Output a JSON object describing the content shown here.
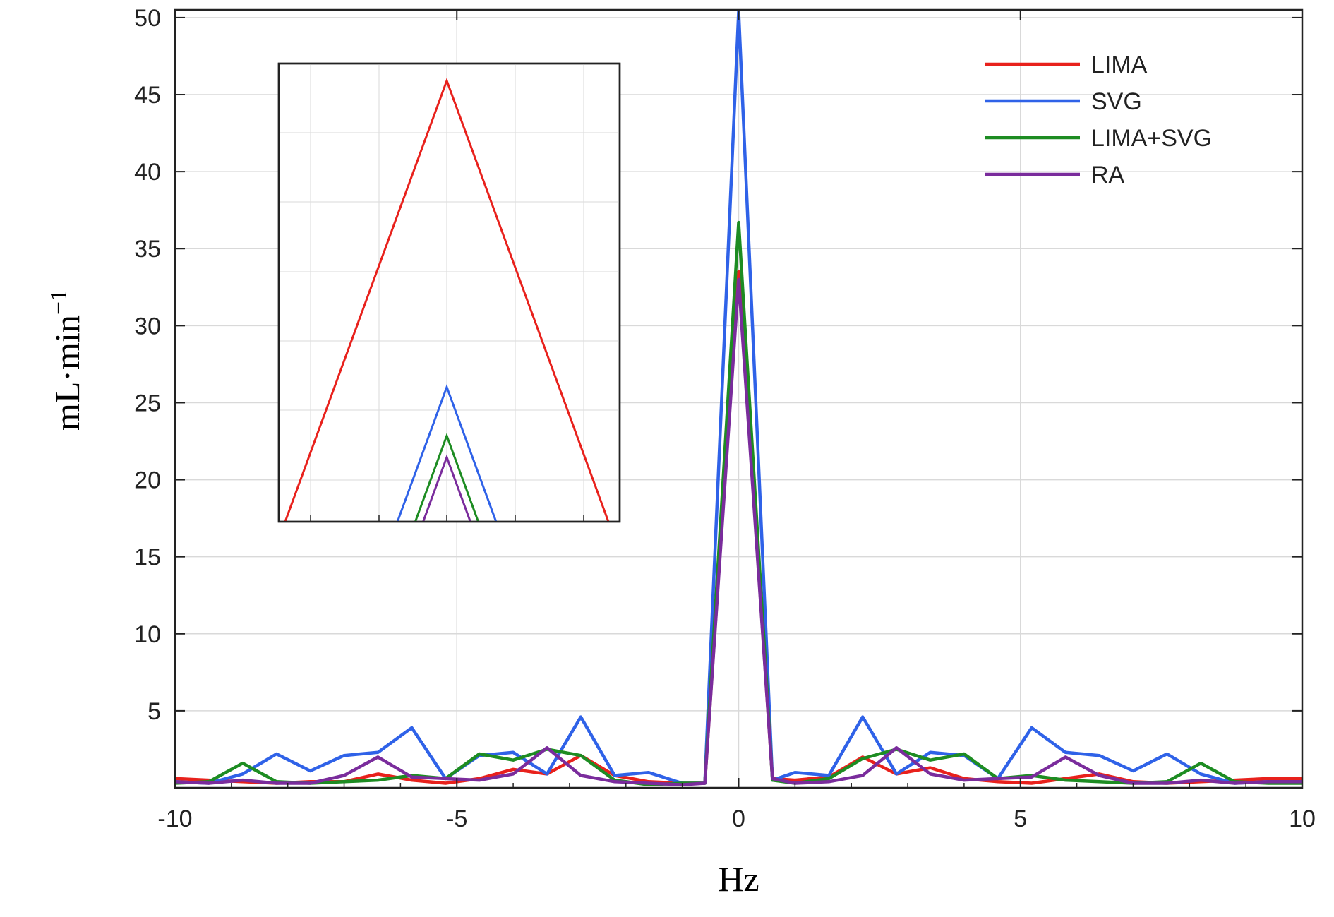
{
  "chart_data": {
    "type": "line",
    "title": "",
    "xlabel": "Hz",
    "ylabel": "mL·min",
    "ylabel_superscript": "−1",
    "xlim": [
      -10,
      10
    ],
    "ylim": [
      0,
      50.5
    ],
    "x_ticks": [
      "-10",
      "-5",
      "0",
      "5",
      "10"
    ],
    "y_ticks": [
      "5",
      "10",
      "15",
      "20",
      "25",
      "30",
      "35",
      "40",
      "45",
      "50"
    ],
    "grid": true,
    "legend_position": "top-right",
    "x": [
      -10,
      -9.4,
      -8.8,
      -8.2,
      -7.6,
      -7.0,
      -6.4,
      -5.8,
      -5.2,
      -4.6,
      -4.0,
      -3.4,
      -2.8,
      -2.2,
      -1.6,
      -1.0,
      -0.6,
      0,
      0.6,
      1.0,
      1.6,
      2.2,
      2.8,
      3.4,
      4.0,
      4.6,
      5.2,
      5.8,
      6.4,
      7.0,
      7.6,
      8.2,
      8.8,
      9.4,
      10
    ],
    "series": [
      {
        "name": "LIMA",
        "color": "#e8211c",
        "values": [
          0.6,
          0.5,
          0.4,
          0.3,
          0.4,
          0.4,
          0.9,
          0.5,
          0.3,
          0.6,
          1.2,
          0.9,
          2.1,
          0.8,
          0.4,
          0.3,
          0.3,
          33.5,
          0.6,
          0.5,
          0.7,
          2.0,
          0.9,
          1.3,
          0.6,
          0.4,
          0.3,
          0.6,
          0.9,
          0.4,
          0.3,
          0.4,
          0.5,
          0.6,
          0.6
        ]
      },
      {
        "name": "SVG",
        "color": "#2f62e8",
        "values": [
          0.4,
          0.3,
          0.9,
          2.2,
          1.1,
          2.1,
          2.3,
          3.9,
          0.6,
          2.1,
          2.3,
          0.9,
          4.6,
          0.8,
          1.0,
          0.3,
          0.3,
          50.4,
          0.5,
          1.0,
          0.8,
          4.6,
          0.9,
          2.3,
          2.1,
          0.6,
          3.9,
          2.3,
          2.1,
          1.1,
          2.2,
          0.9,
          0.3,
          0.4,
          0.4
        ]
      },
      {
        "name": "LIMA+SVG",
        "color": "#1d8c22",
        "values": [
          0.3,
          0.4,
          1.6,
          0.4,
          0.3,
          0.4,
          0.5,
          0.8,
          0.6,
          2.2,
          1.8,
          2.5,
          2.1,
          0.5,
          0.2,
          0.3,
          0.3,
          36.7,
          0.5,
          0.3,
          0.6,
          1.9,
          2.5,
          1.8,
          2.2,
          0.6,
          0.8,
          0.5,
          0.4,
          0.3,
          0.4,
          1.6,
          0.4,
          0.3,
          0.3
        ]
      },
      {
        "name": "RA",
        "color": "#7a2c9c",
        "values": [
          0.4,
          0.3,
          0.5,
          0.3,
          0.3,
          0.8,
          2.0,
          0.7,
          0.6,
          0.5,
          0.9,
          2.6,
          0.8,
          0.4,
          0.3,
          0.2,
          0.3,
          33.0,
          0.6,
          0.3,
          0.4,
          0.8,
          2.6,
          0.9,
          0.5,
          0.6,
          0.7,
          2.0,
          0.8,
          0.3,
          0.3,
          0.5,
          0.3,
          0.4,
          0.4
        ]
      }
    ],
    "inset": {
      "description_free": true,
      "peaks": [
        46.8,
        25.4,
        22.0,
        20.5
      ]
    }
  }
}
